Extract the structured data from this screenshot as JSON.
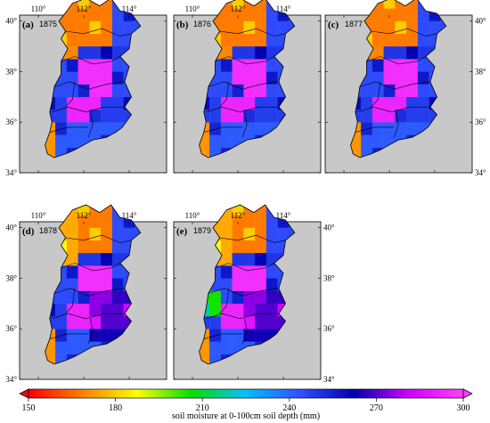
{
  "figure": {
    "colorbar": {
      "title": "soil moisture at 0-100cm soil depth (mm)",
      "ticks": [
        "150",
        "180",
        "210",
        "240",
        "270",
        "300"
      ],
      "range": [
        150,
        300
      ],
      "stops": [
        "#ff0000",
        "#ff8000",
        "#ffff00",
        "#00e000",
        "#00c0ff",
        "#3050ff",
        "#0000b0",
        "#d000ff",
        "#ff40ff"
      ]
    },
    "axis": {
      "x_ticks": [
        "110°",
        "112°",
        "114°"
      ],
      "y_ticks": [
        "34°",
        "36°",
        "38°",
        "40°"
      ]
    },
    "background_color": "#c8c8c8",
    "panels": [
      {
        "label": "(a)",
        "year": "1875"
      },
      {
        "label": "(b)",
        "year": "1876"
      },
      {
        "label": "(c)",
        "year": "1877"
      },
      {
        "label": "(d)",
        "year": "1878"
      },
      {
        "label": "(e)",
        "year": "1879"
      }
    ]
  }
}
